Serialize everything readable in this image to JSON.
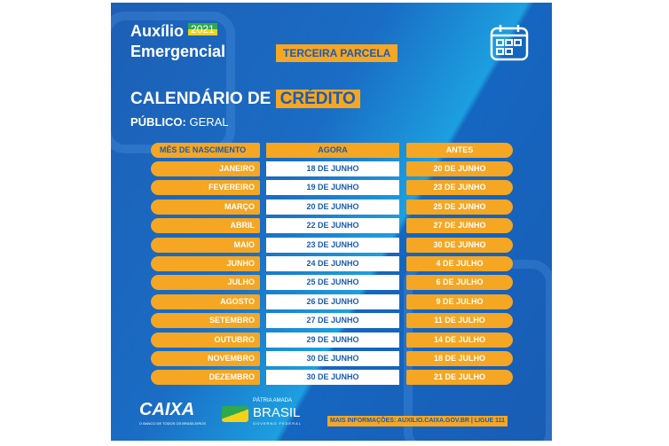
{
  "brand": {
    "title_line1": "Auxílio",
    "year": "2021",
    "title_line2": "Emergencial"
  },
  "badge": "TERCEIRA PARCELA",
  "heading": {
    "part1": "CALENDÁRIO DE",
    "part2": "CRÉDITO"
  },
  "audience": {
    "label": "PÚBLICO:",
    "value": "GERAL"
  },
  "table": {
    "headers": [
      "MÊS DE NASCIMENTO",
      "AGORA",
      "ANTES"
    ],
    "rows": [
      [
        "JANEIRO",
        "18 DE JUNHO",
        "20 DE JUNHO"
      ],
      [
        "FEVEREIRO",
        "19 DE JUNHO",
        "23 DE JUNHO"
      ],
      [
        "MARÇO",
        "20 DE JUNHO",
        "25 DE JUNHO"
      ],
      [
        "ABRIL",
        "22 DE JUNHO",
        "27 DE JUNHO"
      ],
      [
        "MAIO",
        "23 DE JUNHO",
        "30 DE JUNHO"
      ],
      [
        "JUNHO",
        "24 DE JUNHO",
        "4 DE JULHO"
      ],
      [
        "JULHO",
        "25 DE JUNHO",
        "6 DE JULHO"
      ],
      [
        "AGOSTO",
        "26 DE JUNHO",
        "9 DE JULHO"
      ],
      [
        "SETEMBRO",
        "27 DE JUNHO",
        "11 DE JULHO"
      ],
      [
        "OUTUBRO",
        "29 DE JUNHO",
        "14 DE JULHO"
      ],
      [
        "NOVEMBRO",
        "30 DE JUNHO",
        "18 DE JULHO"
      ],
      [
        "DEZEMBRO",
        "30 DE JUNHO",
        "21 DE JULHO"
      ]
    ]
  },
  "footer": {
    "caixa": "CAIXA",
    "caixa_tagline": "O BANCO DE TODOS OS BRASILEIROS",
    "gov_line1": "PÁTRIA AMADA",
    "gov_line2": "BRASIL",
    "gov_line3": "GOVERNO FEDERAL",
    "info": "MAIS INFORMAÇÕES: AUXILIO.CAIXA.GOV.BR | LIGUE 111"
  },
  "colors": {
    "blue": "#1a5cb4",
    "orange": "#f5a623"
  },
  "icons": [
    "calendar-icon"
  ]
}
